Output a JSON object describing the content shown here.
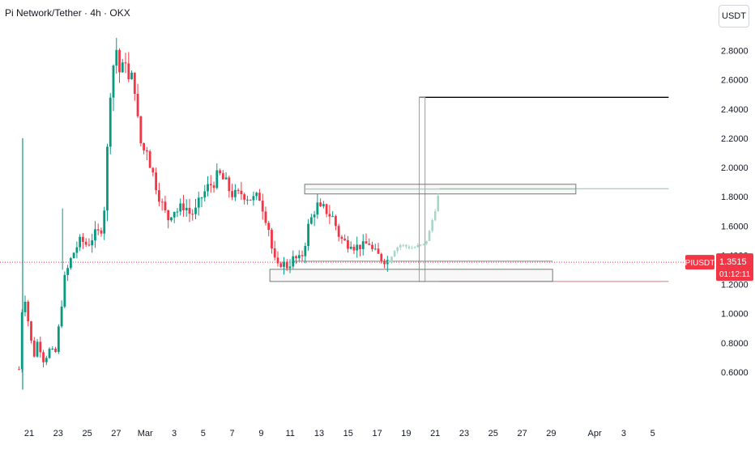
{
  "chart_data": {
    "type": "candlestick",
    "title": "Pi Network/Tether · 4h · OKX",
    "price_unit": "USDT",
    "y_ticks": [
      "2.8000",
      "2.6000",
      "2.4000",
      "2.2000",
      "2.0000",
      "1.8000",
      "1.6000",
      "1.4000",
      "1.2000",
      "1.0000",
      "0.8000",
      "0.6000"
    ],
    "ylim": [
      0.45,
      2.98
    ],
    "x_ticks": [
      {
        "label": "21",
        "day": 0
      },
      {
        "label": "23",
        "day": 2
      },
      {
        "label": "25",
        "day": 4
      },
      {
        "label": "27",
        "day": 6
      },
      {
        "label": "Mar",
        "day": 8
      },
      {
        "label": "3",
        "day": 10
      },
      {
        "label": "5",
        "day": 12
      },
      {
        "label": "7",
        "day": 14
      },
      {
        "label": "9",
        "day": 16
      },
      {
        "label": "11",
        "day": 18
      },
      {
        "label": "13",
        "day": 20
      },
      {
        "label": "15",
        "day": 22
      },
      {
        "label": "17",
        "day": 24
      },
      {
        "label": "19",
        "day": 26
      },
      {
        "label": "21",
        "day": 28
      },
      {
        "label": "23",
        "day": 30
      },
      {
        "label": "25",
        "day": 32
      },
      {
        "label": "27",
        "day": 34
      },
      {
        "label": "29",
        "day": 36
      },
      {
        "label": "Apr",
        "day": 39
      },
      {
        "label": "3",
        "day": 41
      },
      {
        "label": "5",
        "day": 43
      }
    ],
    "xlim": [
      -0.7,
      44.1
    ],
    "price_path": [
      [
        -0.7,
        0.62
      ],
      [
        -0.4,
        1.2
      ],
      [
        0,
        0.9
      ],
      [
        0.3,
        0.7
      ],
      [
        0.6,
        0.82
      ],
      [
        1,
        0.68
      ],
      [
        1.4,
        0.75
      ],
      [
        1.8,
        0.72
      ],
      [
        2.1,
        0.95
      ],
      [
        2.4,
        1.22
      ],
      [
        2.8,
        1.35
      ],
      [
        3.2,
        1.45
      ],
      [
        3.6,
        1.5
      ],
      [
        4,
        1.47
      ],
      [
        4.4,
        1.53
      ],
      [
        4.8,
        1.55
      ],
      [
        5.1,
        1.62
      ],
      [
        5.3,
        1.9
      ],
      [
        5.55,
        2.5
      ],
      [
        5.8,
        2.7
      ],
      [
        6.1,
        2.85
      ],
      [
        6.3,
        2.55
      ],
      [
        6.6,
        2.8
      ],
      [
        6.9,
        2.55
      ],
      [
        7.2,
        2.65
      ],
      [
        7.5,
        2.3
      ],
      [
        7.8,
        2.1
      ],
      [
        8.1,
        2.15
      ],
      [
        8.4,
        2.0
      ],
      [
        8.7,
        1.9
      ],
      [
        9,
        1.8
      ],
      [
        9.3,
        1.7
      ],
      [
        9.6,
        1.65
      ],
      [
        9.9,
        1.72
      ],
      [
        10.3,
        1.7
      ],
      [
        10.7,
        1.75
      ],
      [
        11.1,
        1.68
      ],
      [
        11.5,
        1.7
      ],
      [
        11.9,
        1.8
      ],
      [
        12.3,
        1.86
      ],
      [
        12.7,
        1.9
      ],
      [
        13.1,
        1.95
      ],
      [
        13.5,
        1.9
      ],
      [
        13.9,
        1.83
      ],
      [
        14.3,
        1.8
      ],
      [
        14.7,
        1.83
      ],
      [
        15.1,
        1.8
      ],
      [
        15.5,
        1.78
      ],
      [
        15.9,
        1.8
      ],
      [
        16.2,
        1.7
      ],
      [
        16.5,
        1.6
      ],
      [
        16.8,
        1.4
      ],
      [
        17.1,
        1.3
      ],
      [
        17.4,
        1.36
      ],
      [
        17.7,
        1.32
      ],
      [
        18,
        1.35
      ],
      [
        18.3,
        1.38
      ],
      [
        18.6,
        1.36
      ],
      [
        18.9,
        1.42
      ],
      [
        19.2,
        1.58
      ],
      [
        19.5,
        1.66
      ],
      [
        19.8,
        1.75
      ],
      [
        20.1,
        1.7
      ],
      [
        20.4,
        1.72
      ],
      [
        20.7,
        1.68
      ],
      [
        21,
        1.65
      ],
      [
        21.3,
        1.55
      ],
      [
        21.6,
        1.5
      ],
      [
        21.9,
        1.48
      ],
      [
        22.2,
        1.5
      ],
      [
        22.5,
        1.45
      ],
      [
        22.8,
        1.47
      ],
      [
        23.1,
        1.45
      ],
      [
        23.4,
        1.5
      ],
      [
        23.7,
        1.42
      ],
      [
        24,
        1.4
      ],
      [
        24.3,
        1.38
      ],
      [
        24.6,
        1.37
      ],
      [
        24.8,
        1.36
      ]
    ],
    "projection_path": [
      [
        24.8,
        1.36
      ],
      [
        25.2,
        1.44
      ],
      [
        25.6,
        1.47
      ],
      [
        26,
        1.46
      ],
      [
        26.4,
        1.45
      ],
      [
        26.8,
        1.46
      ],
      [
        27.2,
        1.47
      ],
      [
        27.5,
        1.52
      ],
      [
        27.7,
        1.6
      ],
      [
        27.9,
        1.68
      ],
      [
        28.1,
        1.75
      ],
      [
        28.3,
        1.85
      ]
    ],
    "drawings": {
      "supply_zone": {
        "x1": 19.0,
        "x2": 37.7,
        "y1": 1.819,
        "y2": 1.885
      },
      "demand_zone": {
        "x1": 16.6,
        "x2": 36.1,
        "y1": 1.22,
        "y2": 1.303
      },
      "target_line": {
        "x1": 26.9,
        "x2": 44.1,
        "y": 2.48
      },
      "upper_level_line": {
        "x1": 28.3,
        "x2": 44.1,
        "y": 1.855
      },
      "lower_level_line": {
        "x1": 28.3,
        "x2": 44.1,
        "y": 1.22
      },
      "projection_box": {
        "x1": 26.9,
        "x2": 27.3,
        "y1": 1.22,
        "y2": 2.48
      },
      "current_price_line": {
        "y": 1.3515
      }
    },
    "current_price": {
      "symbol": "PIUSDT",
      "price": "1.3515",
      "countdown": "01:12:11"
    },
    "colors": {
      "up": "#089981",
      "down": "#f23645",
      "current": "#f23645",
      "projection": "#a5d6c6"
    }
  }
}
